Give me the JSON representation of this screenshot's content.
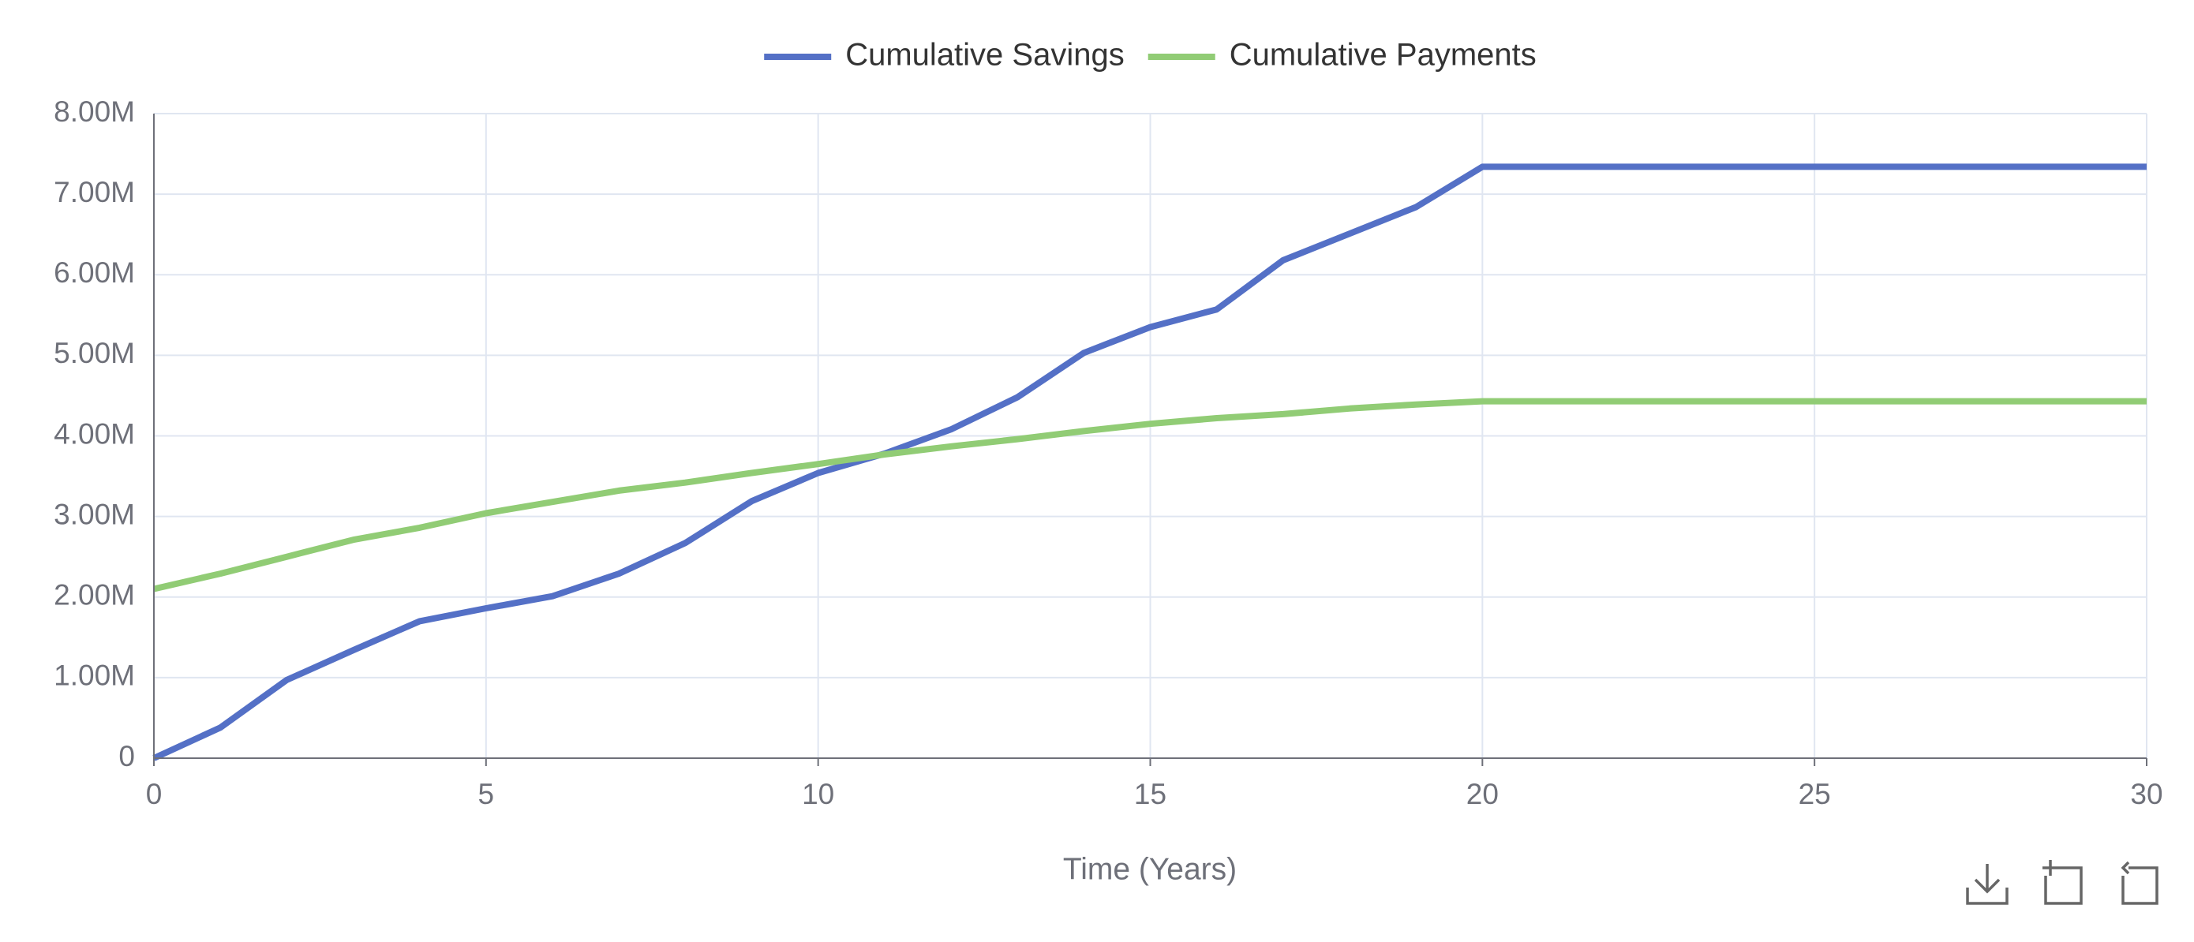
{
  "chart_data": {
    "type": "line",
    "x": [
      0,
      1,
      2,
      3,
      4,
      5,
      6,
      7,
      8,
      9,
      10,
      11,
      12,
      13,
      14,
      15,
      16,
      17,
      18,
      19,
      20,
      21,
      22,
      23,
      24,
      25,
      26,
      27,
      28,
      29,
      30
    ],
    "series": [
      {
        "name": "Cumulative Savings",
        "color": "#5470c6",
        "values": [
          0,
          380000,
          970000,
          1340000,
          1700000,
          1860000,
          2010000,
          2290000,
          2670000,
          3190000,
          3540000,
          3780000,
          4080000,
          4480000,
          5030000,
          5350000,
          5570000,
          6180000,
          6510000,
          6840000,
          7340000,
          7340000,
          7340000,
          7340000,
          7340000,
          7340000,
          7340000,
          7340000,
          7340000,
          7340000,
          7340000
        ]
      },
      {
        "name": "Cumulative Payments",
        "color": "#91cc75",
        "values": [
          2100000,
          2290000,
          2500000,
          2710000,
          2860000,
          3040000,
          3180000,
          3320000,
          3420000,
          3540000,
          3650000,
          3770000,
          3870000,
          3960000,
          4060000,
          4150000,
          4220000,
          4270000,
          4340000,
          4390000,
          4430000,
          4430000,
          4430000,
          4430000,
          4430000,
          4430000,
          4430000,
          4430000,
          4430000,
          4430000,
          4430000
        ]
      }
    ],
    "x_label": "Time (Years)",
    "xlim": [
      0,
      30
    ],
    "xticks": [
      0,
      5,
      10,
      15,
      20,
      25,
      30
    ],
    "ylim": [
      0,
      8000000
    ],
    "yticks": [
      0,
      {
        "value": 1000000,
        "label": "1.00M"
      },
      {
        "value": 2000000,
        "label": "2.00M"
      },
      {
        "value": 3000000,
        "label": "3.00M"
      },
      {
        "value": 4000000,
        "label": "4.00M"
      },
      {
        "value": 5000000,
        "label": "5.00M"
      },
      {
        "value": 6000000,
        "label": "6.00M"
      },
      {
        "value": 7000000,
        "label": "7.00M"
      },
      {
        "value": 8000000,
        "label": "8.00M"
      }
    ],
    "grid": true,
    "legend": "top"
  }
}
